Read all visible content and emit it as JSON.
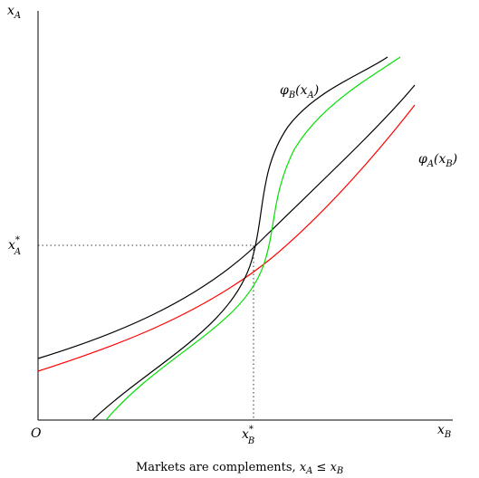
{
  "axes": {
    "y_label": "x",
    "y_label_sub": "A",
    "x_label": "x",
    "x_label_sub": "B",
    "origin": "O"
  },
  "equilibrium": {
    "xa_star": "x",
    "xa_star_sup": "*",
    "xa_star_sub": "A",
    "xb_star": "x",
    "xb_star_sup": "*",
    "xb_star_sub": "B"
  },
  "curves": {
    "phi_b_label": "φ",
    "phi_b_sub": "B",
    "phi_b_arg": "(x",
    "phi_b_arg_sub": "A",
    "phi_b_close": ")",
    "phi_a_label": "φ",
    "phi_a_sub": "A",
    "phi_a_arg": "(x",
    "phi_a_arg_sub": "B",
    "phi_a_close": ")"
  },
  "colors": {
    "black_curve": "#000000",
    "red_curve": "#ff0000",
    "green_curve": "#00e000"
  },
  "caption": {
    "text": "Markets are complements, ",
    "math_a": "x",
    "math_a_sub": "A",
    "relation": " ≤ ",
    "math_b": "x",
    "math_b_sub": "B"
  }
}
